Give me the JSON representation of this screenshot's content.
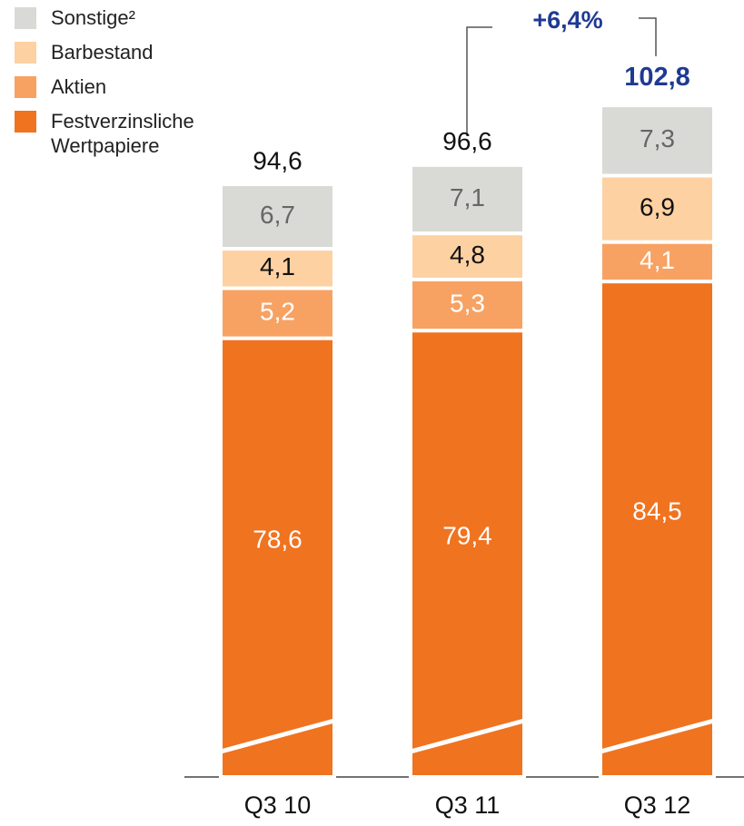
{
  "chart_data": {
    "type": "stacked_bar",
    "categories": [
      "Q3 10",
      "Q3 11",
      "Q3 12"
    ],
    "series": [
      {
        "name": "Festverzinsliche Wertpapiere",
        "color": "#f07320",
        "label_color": "#ffffff",
        "values": [
          78.6,
          79.4,
          84.5
        ],
        "value_labels": [
          "78,6",
          "79,4",
          "84,5"
        ]
      },
      {
        "name": "Aktien",
        "color": "#f7a262",
        "label_color": "#ffffff",
        "values": [
          5.2,
          5.3,
          4.1
        ],
        "value_labels": [
          "5,2",
          "5,3",
          "4,1"
        ]
      },
      {
        "name": "Barbestand",
        "color": "#fdd1a2",
        "label_color": "#111111",
        "values": [
          4.1,
          4.8,
          6.9
        ],
        "value_labels": [
          "4,1",
          "4,8",
          "6,9"
        ]
      },
      {
        "name": "Sonstige²",
        "color": "#d9d9d6",
        "label_color": "#666666",
        "values": [
          6.7,
          7.1,
          7.3
        ],
        "value_labels": [
          "6,7",
          "7,1",
          "7,3"
        ]
      }
    ],
    "totals": {
      "values": [
        94.6,
        96.6,
        102.8
      ],
      "value_labels": [
        "94,6",
        "96,6",
        "102,8"
      ],
      "colors": [
        "#111111",
        "#111111",
        "#1f3a93"
      ]
    },
    "annotation": "+6,4%",
    "annotation_color": "#1f3a93",
    "ylim": [
      33,
      103
    ],
    "axis_break": true,
    "legend": "top-left"
  }
}
